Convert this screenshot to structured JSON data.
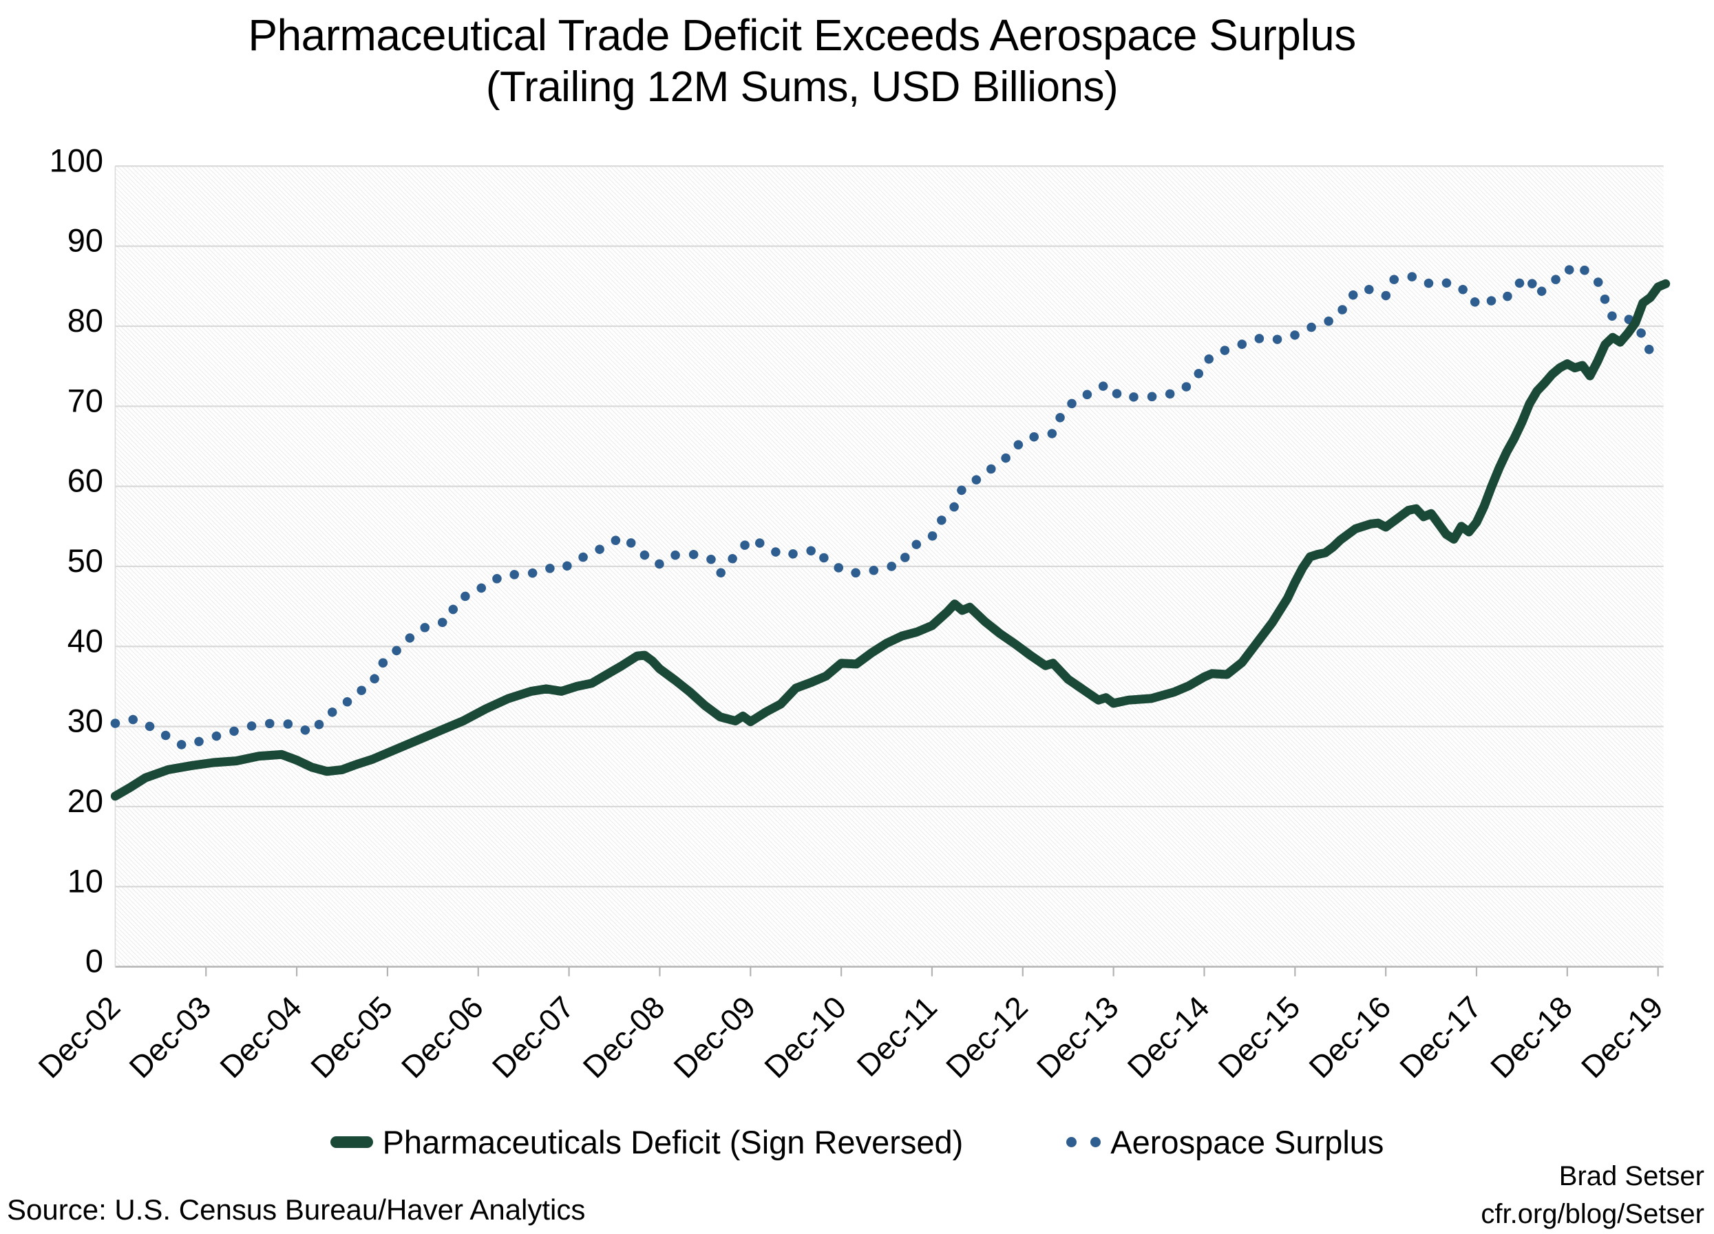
{
  "title": {
    "line1": "Pharmaceutical Trade Deficit Exceeds Aerospace Surplus",
    "line2": "(Trailing 12M Sums, USD Billions)"
  },
  "source_note": "Source: U.S. Census Bureau/Haver Analytics",
  "credit": {
    "line1": "Brad Setser",
    "line2": "cfr.org/blog/Setser"
  },
  "colors": {
    "pharma_green": "#1b4937",
    "aerospace_blue": "#2e5d90",
    "gridline": "#d9d9d9",
    "axis_line": "#b3b3b3",
    "hatch": "#e4e4e4",
    "text": "#000000"
  },
  "chart_data": {
    "type": "line",
    "title": "Pharmaceutical Trade Deficit Exceeds Aerospace Surplus",
    "subtitle": "(Trailing 12M Sums, USD Billions)",
    "xlabel": "",
    "ylabel": "",
    "ylim": [
      0,
      100
    ],
    "y_ticks": [
      0,
      10,
      20,
      30,
      40,
      50,
      60,
      70,
      80,
      90,
      100
    ],
    "x_tick_labels": [
      "Dec-02",
      "Dec-03",
      "Dec-04",
      "Dec-05",
      "Dec-06",
      "Dec-07",
      "Dec-08",
      "Dec-09",
      "Dec-10",
      "Dec-11",
      "Dec-12",
      "Dec-13",
      "Dec-14",
      "Dec-15",
      "Dec-16",
      "Dec-17",
      "Dec-18",
      "Dec-19"
    ],
    "x_unit": "months_since_dec_2002",
    "grid": "horizontal",
    "legend_position": "bottom",
    "series": [
      {
        "name": "Pharmaceuticals Deficit (Sign Reversed)",
        "style": "solid",
        "color": "#1b4937",
        "points": [
          [
            0,
            21.3
          ],
          [
            2,
            22.4
          ],
          [
            4,
            23.6
          ],
          [
            7,
            24.6
          ],
          [
            10,
            25.1
          ],
          [
            13,
            25.5
          ],
          [
            16,
            25.7
          ],
          [
            19,
            26.3
          ],
          [
            22,
            26.5
          ],
          [
            24,
            25.8
          ],
          [
            26,
            24.9
          ],
          [
            28,
            24.4
          ],
          [
            30,
            24.6
          ],
          [
            32,
            25.3
          ],
          [
            34,
            25.9
          ],
          [
            37,
            27.1
          ],
          [
            40,
            28.3
          ],
          [
            43,
            29.5
          ],
          [
            46,
            30.7
          ],
          [
            49,
            32.2
          ],
          [
            52,
            33.5
          ],
          [
            55,
            34.4
          ],
          [
            57,
            34.7
          ],
          [
            59,
            34.4
          ],
          [
            61,
            35.0
          ],
          [
            63,
            35.4
          ],
          [
            65,
            36.5
          ],
          [
            67,
            37.6
          ],
          [
            69,
            38.8
          ],
          [
            70,
            38.9
          ],
          [
            71,
            38.2
          ],
          [
            72,
            37.2
          ],
          [
            74,
            35.8
          ],
          [
            76,
            34.3
          ],
          [
            78,
            32.6
          ],
          [
            80,
            31.2
          ],
          [
            82,
            30.7
          ],
          [
            83,
            31.3
          ],
          [
            84,
            30.6
          ],
          [
            86,
            31.8
          ],
          [
            88,
            32.8
          ],
          [
            90,
            34.8
          ],
          [
            92,
            35.5
          ],
          [
            94,
            36.3
          ],
          [
            96,
            37.9
          ],
          [
            98,
            37.8
          ],
          [
            100,
            39.2
          ],
          [
            102,
            40.4
          ],
          [
            104,
            41.3
          ],
          [
            106,
            41.8
          ],
          [
            108,
            42.6
          ],
          [
            110,
            44.3
          ],
          [
            111,
            45.3
          ],
          [
            112,
            44.5
          ],
          [
            113,
            44.9
          ],
          [
            115,
            43.1
          ],
          [
            117,
            41.6
          ],
          [
            119,
            40.3
          ],
          [
            121,
            38.9
          ],
          [
            123,
            37.6
          ],
          [
            124,
            37.9
          ],
          [
            126,
            35.9
          ],
          [
            128,
            34.6
          ],
          [
            130,
            33.3
          ],
          [
            131,
            33.6
          ],
          [
            132,
            32.9
          ],
          [
            134,
            33.3
          ],
          [
            137,
            33.5
          ],
          [
            140,
            34.3
          ],
          [
            142,
            35.1
          ],
          [
            144,
            36.2
          ],
          [
            145,
            36.6
          ],
          [
            147,
            36.5
          ],
          [
            149,
            38.0
          ],
          [
            151,
            40.5
          ],
          [
            153,
            43.0
          ],
          [
            155,
            46.0
          ],
          [
            156,
            48.0
          ],
          [
            157,
            49.8
          ],
          [
            158,
            51.2
          ],
          [
            159,
            51.5
          ],
          [
            160,
            51.7
          ],
          [
            161,
            52.4
          ],
          [
            162,
            53.3
          ],
          [
            163,
            54.0
          ],
          [
            164,
            54.7
          ],
          [
            165,
            55.0
          ],
          [
            166,
            55.3
          ],
          [
            167,
            55.4
          ],
          [
            168,
            54.9
          ],
          [
            169,
            55.6
          ],
          [
            170,
            56.3
          ],
          [
            171,
            57.0
          ],
          [
            172,
            57.2
          ],
          [
            173,
            56.2
          ],
          [
            174,
            56.6
          ],
          [
            175,
            55.3
          ],
          [
            176,
            54.0
          ],
          [
            177,
            53.4
          ],
          [
            178,
            55.0
          ],
          [
            179,
            54.3
          ],
          [
            180,
            55.5
          ],
          [
            181,
            57.5
          ],
          [
            182,
            60.0
          ],
          [
            183,
            62.3
          ],
          [
            184,
            64.3
          ],
          [
            185,
            66.0
          ],
          [
            186,
            68.0
          ],
          [
            187,
            70.3
          ],
          [
            188,
            71.9
          ],
          [
            189,
            72.9
          ],
          [
            190,
            74.0
          ],
          [
            191,
            74.8
          ],
          [
            192,
            75.3
          ],
          [
            193,
            74.8
          ],
          [
            194,
            75.1
          ],
          [
            195,
            73.8
          ],
          [
            196,
            75.6
          ],
          [
            197,
            77.7
          ],
          [
            198,
            78.6
          ],
          [
            199,
            78.0
          ],
          [
            200,
            79.1
          ],
          [
            201,
            80.4
          ],
          [
            202,
            82.9
          ],
          [
            203,
            83.6
          ],
          [
            204,
            84.9
          ],
          [
            205,
            85.3
          ]
        ]
      },
      {
        "name": "Aerospace Surplus",
        "style": "dotted",
        "color": "#2e5d90",
        "points": [
          [
            0,
            30.4
          ],
          [
            2,
            30.9
          ],
          [
            3,
            30.8
          ],
          [
            5,
            29.8
          ],
          [
            7,
            28.7
          ],
          [
            9,
            27.6
          ],
          [
            11,
            28.1
          ],
          [
            13,
            28.7
          ],
          [
            15,
            29.2
          ],
          [
            17,
            29.8
          ],
          [
            19,
            30.3
          ],
          [
            21,
            30.4
          ],
          [
            23,
            30.3
          ],
          [
            25,
            29.6
          ],
          [
            26,
            29.2
          ],
          [
            28,
            31.4
          ],
          [
            30,
            32.5
          ],
          [
            32,
            34.2
          ],
          [
            34,
            35.3
          ],
          [
            35,
            37.6
          ],
          [
            37,
            39.3
          ],
          [
            39,
            41.1
          ],
          [
            41,
            42.4
          ],
          [
            44,
            43.2
          ],
          [
            45,
            45.3
          ],
          [
            47,
            46.8
          ],
          [
            49,
            47.5
          ],
          [
            51,
            48.8
          ],
          [
            53,
            49.0
          ],
          [
            55,
            49.1
          ],
          [
            57,
            49.8
          ],
          [
            59,
            49.6
          ],
          [
            61,
            50.8
          ],
          [
            63,
            51.6
          ],
          [
            65,
            52.6
          ],
          [
            67,
            53.7
          ],
          [
            69,
            52.4
          ],
          [
            71,
            50.4
          ],
          [
            72,
            50.3
          ],
          [
            74,
            51.4
          ],
          [
            77,
            51.5
          ],
          [
            79,
            50.8
          ],
          [
            80,
            49.1
          ],
          [
            82,
            51.4
          ],
          [
            84,
            53.4
          ],
          [
            86,
            52.6
          ],
          [
            88,
            51.4
          ],
          [
            91,
            51.7
          ],
          [
            93,
            52.2
          ],
          [
            94,
            50.6
          ],
          [
            97,
            49.2
          ],
          [
            99,
            49.2
          ],
          [
            102,
            49.9
          ],
          [
            104,
            50.2
          ],
          [
            105,
            52.3
          ],
          [
            108,
            53.7
          ],
          [
            109,
            55.5
          ],
          [
            111,
            57.5
          ],
          [
            112,
            59.7
          ],
          [
            114,
            60.9
          ],
          [
            116,
            62.3
          ],
          [
            118,
            63.7
          ],
          [
            120,
            65.8
          ],
          [
            122,
            66.3
          ],
          [
            124,
            66.6
          ],
          [
            125,
            68.7
          ],
          [
            127,
            70.9
          ],
          [
            130,
            72.0
          ],
          [
            131,
            72.8
          ],
          [
            133,
            71.1
          ],
          [
            136,
            71.2
          ],
          [
            138,
            71.2
          ],
          [
            141,
            71.9
          ],
          [
            143,
            73.6
          ],
          [
            144,
            75.5
          ],
          [
            146,
            76.8
          ],
          [
            148,
            77.3
          ],
          [
            150,
            78.2
          ],
          [
            152,
            78.6
          ],
          [
            154,
            78.3
          ],
          [
            156,
            78.9
          ],
          [
            158,
            79.8
          ],
          [
            159,
            80.2
          ],
          [
            161,
            80.8
          ],
          [
            163,
            82.8
          ],
          [
            164,
            84.4
          ],
          [
            166,
            84.6
          ],
          [
            168,
            83.8
          ],
          [
            169,
            85.8
          ],
          [
            170,
            86.1
          ],
          [
            172,
            86.2
          ],
          [
            174,
            85.2
          ],
          [
            176,
            85.4
          ],
          [
            178,
            84.9
          ],
          [
            179,
            83.3
          ],
          [
            181,
            82.6
          ],
          [
            183,
            83.8
          ],
          [
            184,
            83.6
          ],
          [
            185,
            85.0
          ],
          [
            187,
            86.1
          ],
          [
            188,
            83.9
          ],
          [
            190,
            85.4
          ],
          [
            192,
            87.2
          ],
          [
            193,
            86.6
          ],
          [
            194,
            87.2
          ],
          [
            196,
            85.7
          ],
          [
            197,
            83.3
          ],
          [
            198,
            81.1
          ],
          [
            200,
            81.0
          ],
          [
            202,
            78.9
          ],
          [
            203,
            76.7
          ],
          [
            204,
            76.5
          ]
        ]
      }
    ]
  }
}
